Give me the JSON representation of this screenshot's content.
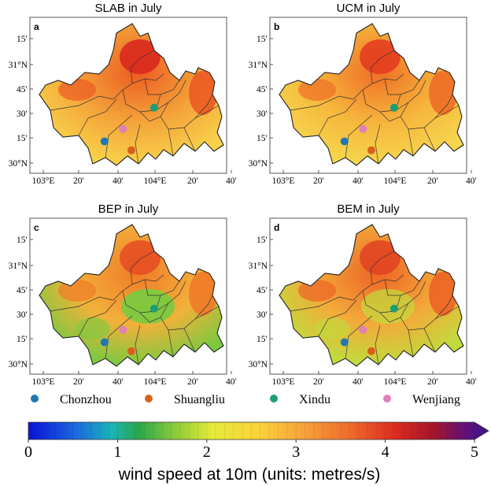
{
  "panels": [
    {
      "id": "a",
      "title": "SLAB in July",
      "fill_key": "slab"
    },
    {
      "id": "b",
      "title": "UCM in July",
      "fill_key": "ucm"
    },
    {
      "id": "c",
      "title": "BEP in July",
      "fill_key": "bep"
    },
    {
      "id": "d",
      "title": "BEM in July",
      "fill_key": "bem"
    }
  ],
  "lat_labels": [
    "15′",
    "31°N",
    "45′",
    "30′",
    "15′",
    "30°N"
  ],
  "lon_labels": [
    "103°E",
    "20′",
    "40′",
    "104°E",
    "20′",
    "40′"
  ],
  "stations": [
    {
      "name": "Chonzhou",
      "color": "#1f77b4",
      "lon": 103.67,
      "lat": 30.63
    },
    {
      "name": "Shuangliu",
      "color": "#d95f1a",
      "lon": 103.93,
      "lat": 30.58
    },
    {
      "name": "Xindu",
      "color": "#1b9e77",
      "lon": 104.15,
      "lat": 30.82
    },
    {
      "name": "Wenjiang",
      "color": "#e07fb8",
      "lon": 103.85,
      "lat": 30.7
    }
  ],
  "colorbar": {
    "min": 0,
    "max": 5,
    "ticks": [
      "0",
      "1",
      "2",
      "3",
      "4",
      "5"
    ],
    "label": "wind speed at 10m (units: metres/s)",
    "extend": "max"
  },
  "fills": {
    "slab": {
      "base": "#f4a53a",
      "hot": "#d8241c",
      "hot2": "#ec5a22",
      "light": "#f8d24a"
    },
    "ucm": {
      "base": "#f6b63c",
      "hot": "#e3381f",
      "hot2": "#ef6d26",
      "light": "#f6d64e"
    },
    "bep": {
      "base": "#f2b13a",
      "hot": "#e54b22",
      "hot2": "#f07a28",
      "light": "#7cc940"
    },
    "bem": {
      "base": "#f3aa3a",
      "hot": "#e04222",
      "hot2": "#ed6326",
      "light": "#c0dc3c"
    }
  }
}
